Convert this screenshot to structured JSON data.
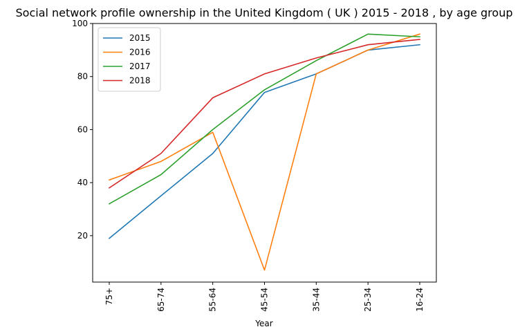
{
  "chart_data": {
    "type": "line",
    "title": "Social network profile ownership in the United Kingdom ( UK ) 2015 - 2018 , by age group",
    "xlabel": "Year",
    "ylabel": "",
    "categories": [
      "75+",
      "65-74",
      "55-64",
      "45-54",
      "35-44",
      "25-34",
      "16-24"
    ],
    "ylim": [
      2.5,
      100
    ],
    "yticks": [
      20,
      40,
      60,
      80,
      100
    ],
    "grid": false,
    "legend_position": "top-left",
    "series": [
      {
        "name": "2015",
        "color": "#1f77b4",
        "values": [
          19,
          35,
          51,
          74,
          81,
          90,
          92
        ]
      },
      {
        "name": "2016",
        "color": "#ff7f0e",
        "values": [
          41,
          48,
          59,
          7,
          81,
          90,
          96
        ]
      },
      {
        "name": "2017",
        "color": "#2ca02c",
        "values": [
          32,
          43,
          60,
          75,
          86,
          96,
          95
        ]
      },
      {
        "name": "2018",
        "color": "#d62728",
        "values": [
          38,
          51,
          72,
          81,
          87,
          92,
          94
        ]
      }
    ]
  }
}
